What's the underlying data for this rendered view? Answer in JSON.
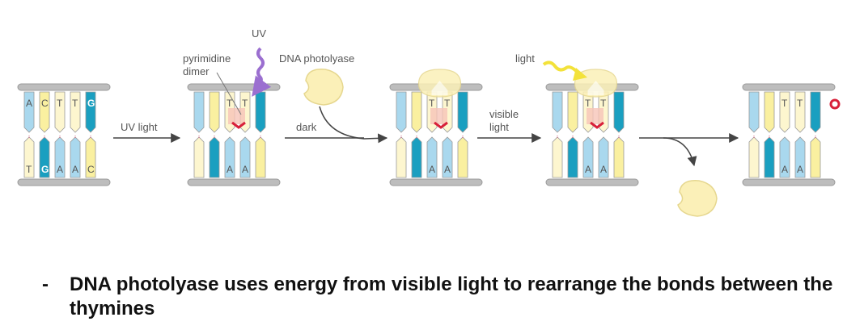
{
  "diagram": {
    "labels": {
      "uv_top": "UV",
      "pyrimidine_dimer": "pyrimidine\ndimer",
      "dna_photolyase": "DNA photolyase",
      "light": "light",
      "uv_light": "UV light",
      "dark": "dark",
      "visible_light": "visible\nlight"
    },
    "bases_top": [
      "A",
      "C",
      "T",
      "T",
      "G"
    ],
    "bases_bottom": [
      "T",
      "G",
      "A",
      "A",
      "C"
    ],
    "dimer_top": [
      "T",
      "T"
    ],
    "dimer_bottom": [
      "A",
      "A"
    ],
    "colors": {
      "light_blue": "#a9d8ee",
      "dark_teal": "#1a9fc0",
      "yellow": "#faf0a0",
      "pale_yellow": "#fdf6cf",
      "enzyme": "#fbf0b8",
      "uv_purple": "#9b6fd0",
      "light_yellow": "#f3e23a",
      "dimer_red": "#d8203a",
      "rail": "#bdbdbd"
    }
  },
  "caption": {
    "bullet": "-",
    "text": "DNA photolyase uses energy from visible light to rearrange the bonds between the thymines"
  }
}
